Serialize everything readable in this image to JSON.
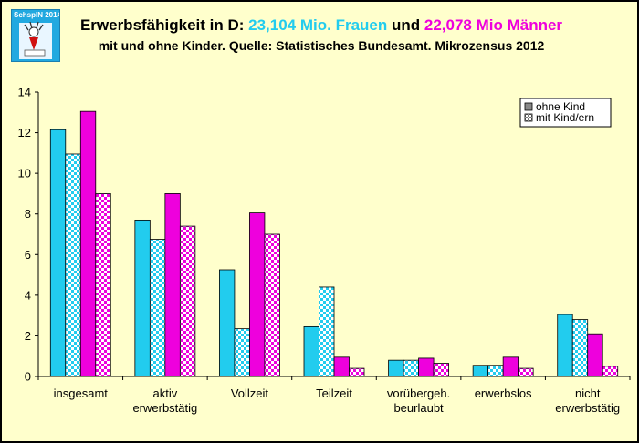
{
  "logo": {
    "text": "SchspIN 2014"
  },
  "title": {
    "prefix": "Erwerbsfähigkeit in D: ",
    "women": "23,104 Mio. Frauen",
    "middle": " und ",
    "men": "22,078 Mio Männer",
    "subtitle": "mit und ohne Kinder. Quelle: Statistisches Bundesamt. Mikrozensus 2012"
  },
  "colors": {
    "frauen": "#22ccee",
    "maenner": "#ee00dd",
    "background": "#ffffcc"
  },
  "chart_data": {
    "type": "bar",
    "title": "Erwerbsfähigkeit in D: 23,104 Mio. Frauen und 22,078 Mio Männer",
    "subtitle": "mit und ohne Kinder. Quelle: Statistisches Bundesamt. Mikrozensus 2012",
    "xlabel": "",
    "ylabel": "",
    "ylim": [
      0,
      14
    ],
    "yticks": [
      0,
      2,
      4,
      6,
      8,
      10,
      12,
      14
    ],
    "categories": [
      [
        "insgesamt"
      ],
      [
        "aktiv",
        "erwerbstätig"
      ],
      [
        "Vollzeit"
      ],
      [
        "Teilzeit"
      ],
      [
        "vorübergeh.",
        "beurlaubt"
      ],
      [
        "erwerbslos"
      ],
      [
        "nicht",
        "erwerbstätig"
      ]
    ],
    "series": [
      {
        "name": "Frauen ohne Kind",
        "group": "frauen",
        "pattern": "solid",
        "values": [
          12.15,
          7.7,
          5.25,
          2.45,
          0.8,
          0.55,
          3.05
        ]
      },
      {
        "name": "Frauen mit Kind/ern",
        "group": "frauen",
        "pattern": "checker",
        "values": [
          10.95,
          6.75,
          2.35,
          4.4,
          0.8,
          0.55,
          2.8
        ]
      },
      {
        "name": "Männer ohne Kind",
        "group": "maenner",
        "pattern": "solid",
        "values": [
          13.05,
          9.0,
          8.05,
          0.95,
          0.9,
          0.95,
          2.1
        ]
      },
      {
        "name": "Männer mit Kind/ern",
        "group": "maenner",
        "pattern": "checker",
        "values": [
          9.0,
          7.4,
          7.0,
          0.4,
          0.65,
          0.4,
          0.5
        ]
      }
    ],
    "legend": {
      "position": "top-right",
      "entries": [
        {
          "label": "ohne Kind",
          "pattern": "solid"
        },
        {
          "label": "mit Kind/ern",
          "pattern": "checker"
        }
      ]
    }
  }
}
